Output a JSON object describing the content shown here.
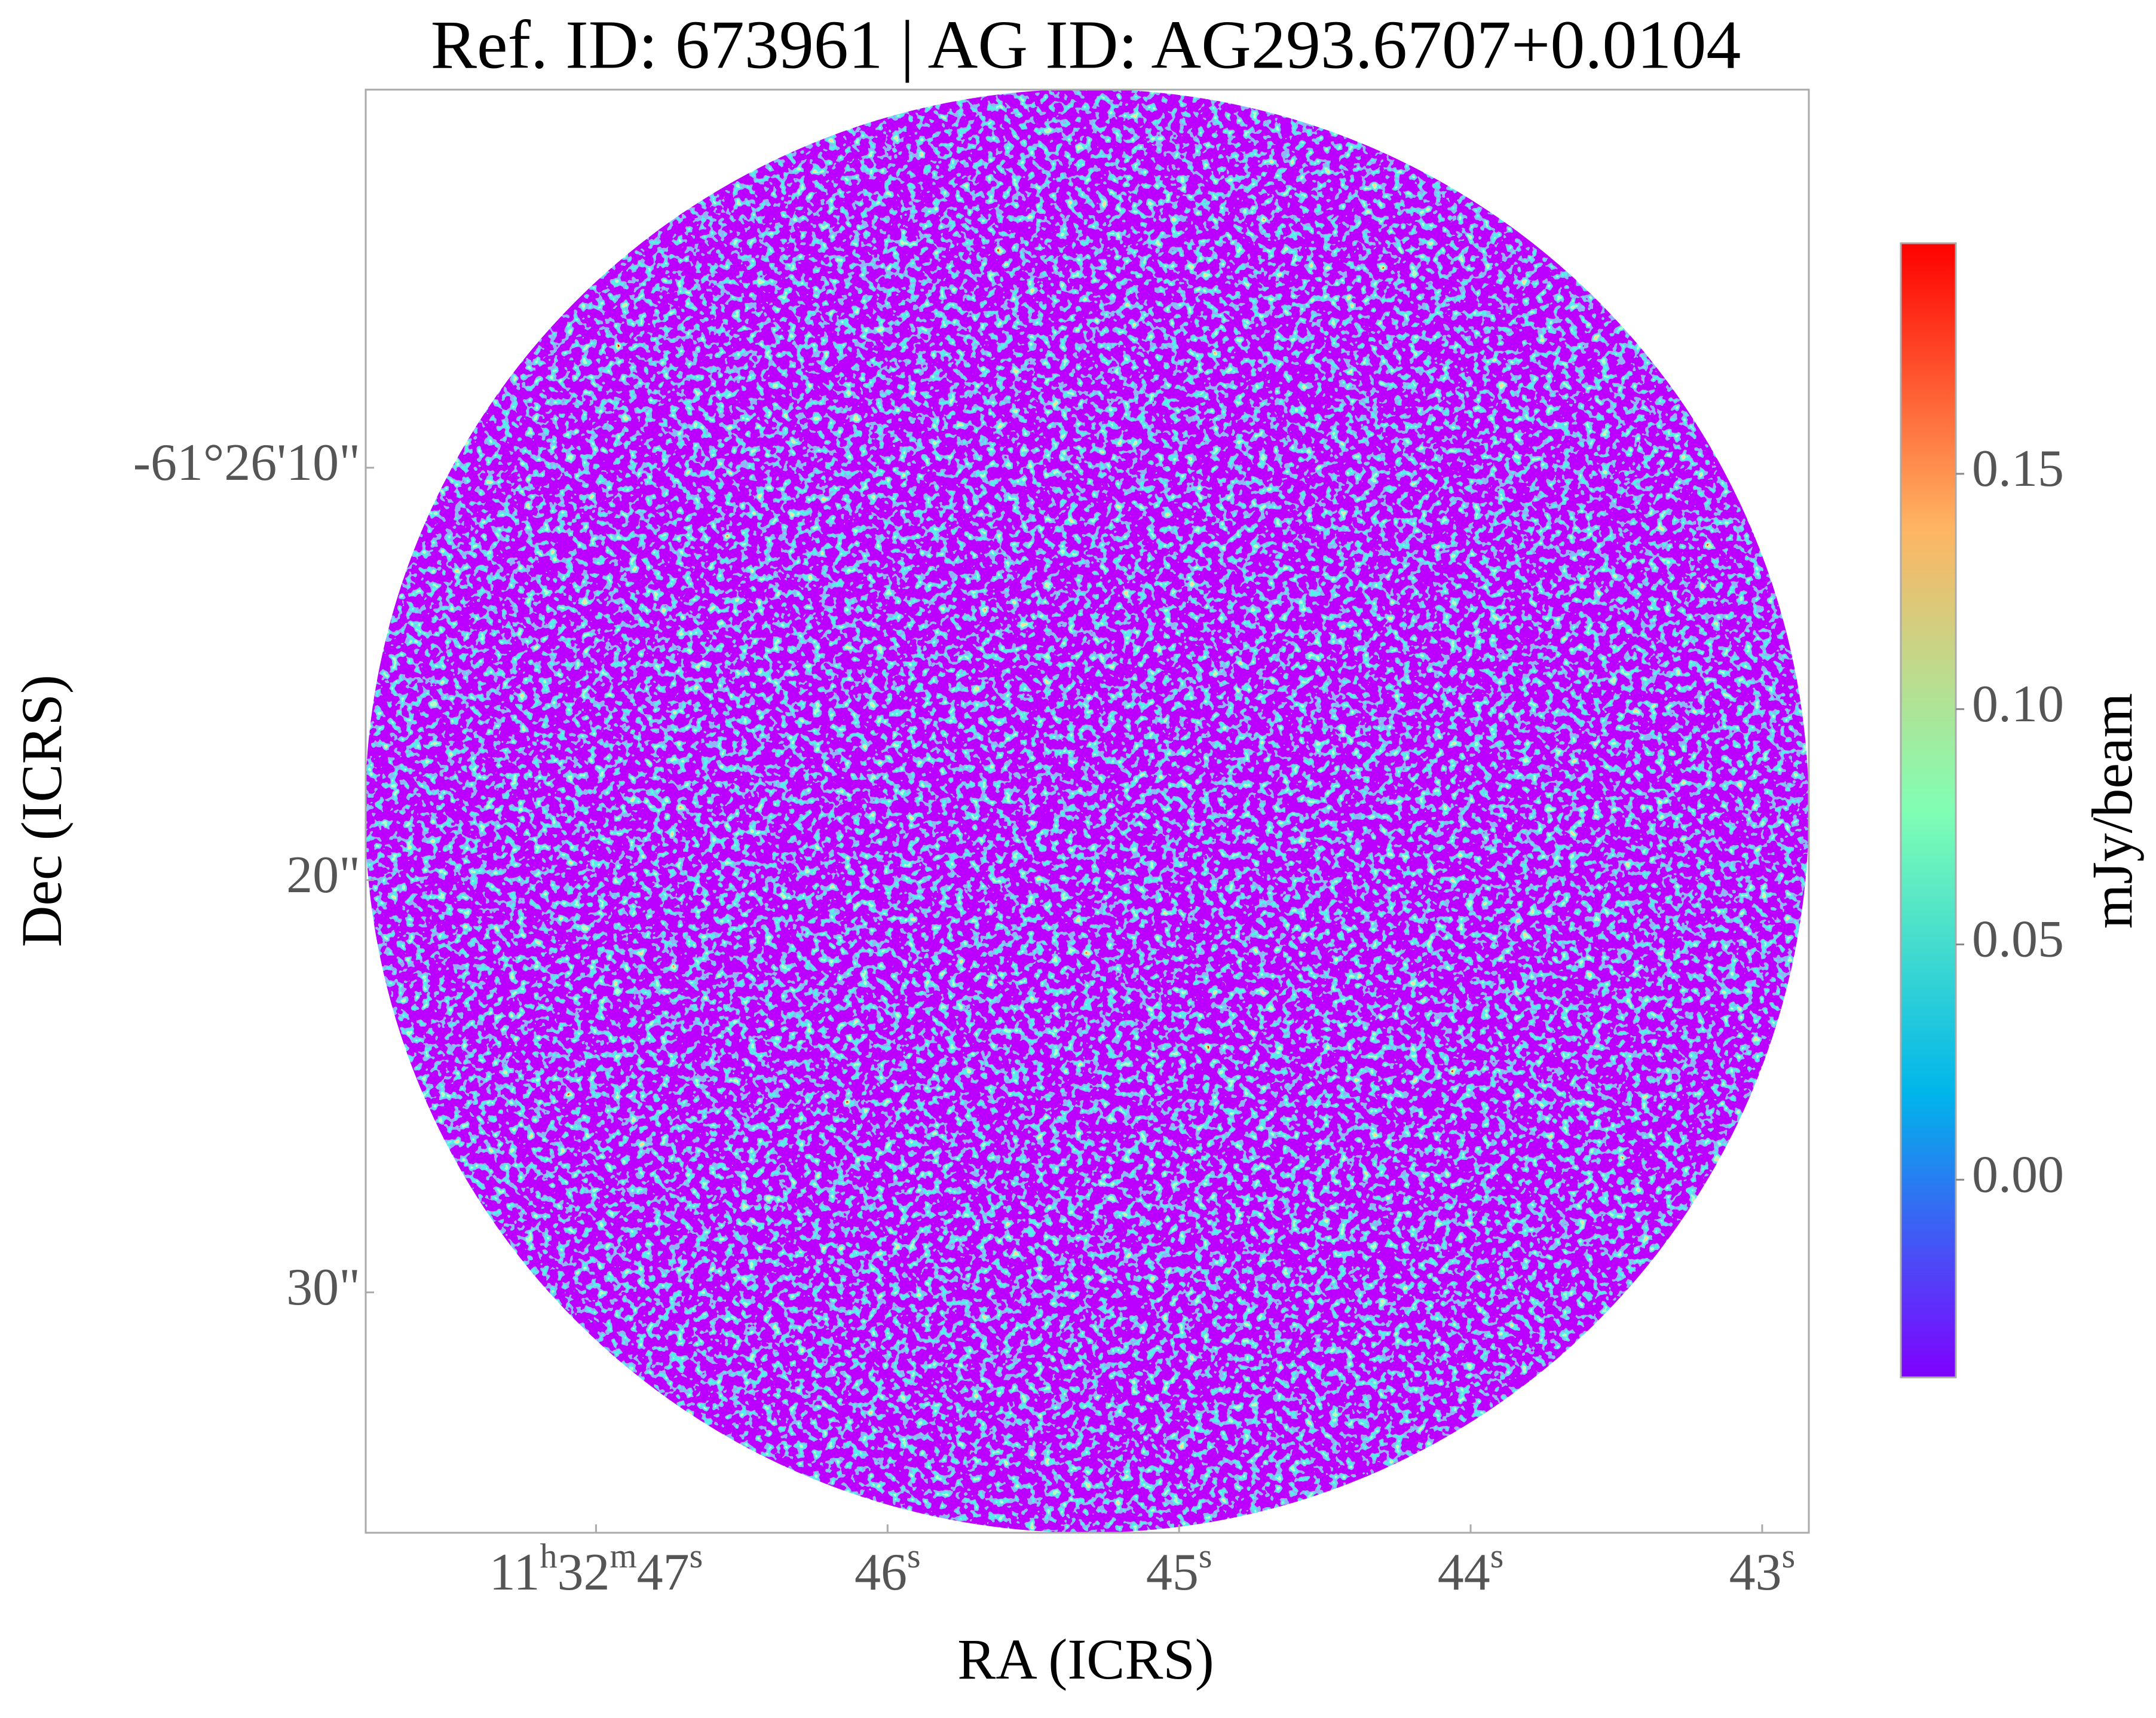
{
  "chart_data": {
    "type": "image",
    "title": "Ref. ID: 673961 | AG ID: AG293.6707+0.0104",
    "xlabel": "RA (ICRS)",
    "ylabel": "Dec (ICRS)",
    "xlim": [
      47.79,
      42.84
    ],
    "xticks": [
      {
        "value": 47,
        "label": "11h32m47s"
      },
      {
        "value": 46,
        "label": "46s"
      },
      {
        "value": 45,
        "label": "45s"
      },
      {
        "value": 44,
        "label": "44s"
      },
      {
        "value": 43,
        "label": "43s"
      }
    ],
    "ylim": [
      35.83,
      0.83
    ],
    "yticks": [
      {
        "value": 10,
        "label": "-61°26'10\""
      },
      {
        "value": 20,
        "label": "20\""
      },
      {
        "value": 30,
        "label": "30\""
      }
    ],
    "colorbar": {
      "label": "mJy/beam",
      "lim": [
        -0.042,
        0.199
      ],
      "ticks": [
        {
          "value": 0,
          "label": "0.00"
        },
        {
          "value": 0.05,
          "label": "0.05"
        },
        {
          "value": 0.1,
          "label": "0.10"
        },
        {
          "value": 0.15,
          "label": "0.15"
        }
      ],
      "colormap": [
        "#8000ff",
        "#00b5eb",
        "#80ffb4",
        "#ffb462",
        "#ff0000"
      ]
    }
  }
}
